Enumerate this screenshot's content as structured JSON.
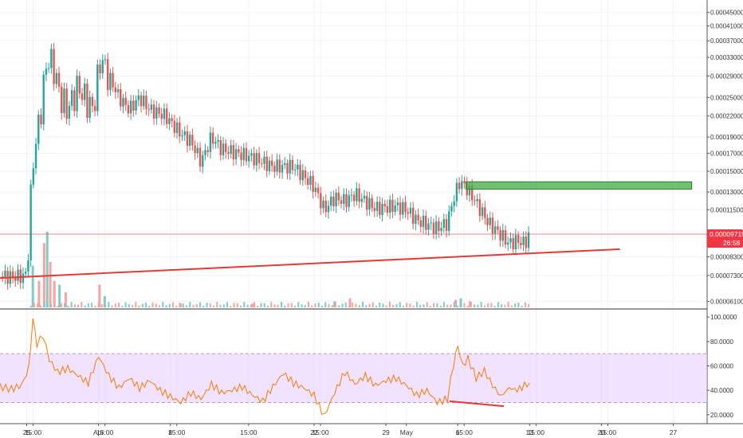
{
  "chart_data": [
    {
      "type": "candlestick",
      "price_axis": {
        "scale": "log",
        "ticks": [
          "0.00045000",
          "0.00041000",
          "0.00037000",
          "0.00033000",
          "0.00029000",
          "0.00025000",
          "0.00022000",
          "0.00019000",
          "0.00017000",
          "0.00015000",
          "0.00013000",
          "0.00011500",
          "0.00009500",
          "0.00008300",
          "0.00007300",
          "0.00006100"
        ],
        "tick_values": [
          0.00045,
          0.00041,
          0.00037,
          0.00033,
          0.00029,
          0.00025,
          0.00022,
          0.00019,
          0.00017,
          0.00015,
          0.00013,
          0.000115,
          9.5e-05,
          8.3e-05,
          7.3e-05,
          6.1e-05
        ],
        "ylim": [
          5.85e-05,
          0.00048
        ]
      },
      "current_price": {
        "label": "0.00009715",
        "value": 9.715e-05,
        "countdown": "26:58",
        "color": "#f23645"
      },
      "x_axis": {
        "tick_labels": [
          "25",
          "15:00",
          "Apr",
          "15:00",
          "8",
          "15:00",
          "15:00",
          "22",
          "15:00",
          "29",
          "May",
          "6",
          "15:00",
          "13",
          "15:00",
          "20",
          "15:00",
          "27"
        ],
        "tick_days": [
          25,
          25.625,
          32,
          32.625,
          39,
          39.625,
          46.625,
          53,
          53.625,
          60,
          62,
          67,
          67.625,
          74,
          74.625,
          81,
          81.625,
          88
        ],
        "xlim": [
          22.4,
          91.3
        ]
      },
      "price_path": [
        {
          "d": 22.4,
          "v": 7.25e-05
        },
        {
          "d": 24.6,
          "v": 7.25e-05
        },
        {
          "d": 25.0,
          "v": 7.4e-05
        },
        {
          "d": 25.6,
          "v": 0.00016
        },
        {
          "d": 26.3,
          "v": 0.00022
        },
        {
          "d": 27.0,
          "v": 0.00033
        },
        {
          "d": 27.6,
          "v": 0.00031
        },
        {
          "d": 28.3,
          "v": 0.00025
        },
        {
          "d": 29.0,
          "v": 0.00023
        },
        {
          "d": 30.0,
          "v": 0.00027
        },
        {
          "d": 31.0,
          "v": 0.00024
        },
        {
          "d": 31.5,
          "v": 0.00023
        },
        {
          "d": 32.2,
          "v": 0.00033
        },
        {
          "d": 33.0,
          "v": 0.00029
        },
        {
          "d": 34.0,
          "v": 0.00025
        },
        {
          "d": 35.0,
          "v": 0.00023
        },
        {
          "d": 36.0,
          "v": 0.00025
        },
        {
          "d": 37.0,
          "v": 0.00023
        },
        {
          "d": 38.5,
          "v": 0.00022
        },
        {
          "d": 40.0,
          "v": 0.000195
        },
        {
          "d": 41.0,
          "v": 0.000185
        },
        {
          "d": 42.0,
          "v": 0.00016
        },
        {
          "d": 43.0,
          "v": 0.00019
        },
        {
          "d": 44.0,
          "v": 0.000175
        },
        {
          "d": 45.5,
          "v": 0.00017
        },
        {
          "d": 47.0,
          "v": 0.000165
        },
        {
          "d": 49.0,
          "v": 0.000155
        },
        {
          "d": 51.0,
          "v": 0.000155
        },
        {
          "d": 52.0,
          "v": 0.000145
        },
        {
          "d": 53.0,
          "v": 0.000135
        },
        {
          "d": 54.0,
          "v": 0.000115
        },
        {
          "d": 55.0,
          "v": 0.000125
        },
        {
          "d": 56.0,
          "v": 0.000122
        },
        {
          "d": 57.0,
          "v": 0.000128
        },
        {
          "d": 58.0,
          "v": 0.000122
        },
        {
          "d": 59.0,
          "v": 0.000116
        },
        {
          "d": 61.0,
          "v": 0.000118
        },
        {
          "d": 62.0,
          "v": 0.000115
        },
        {
          "d": 63.0,
          "v": 0.000107
        },
        {
          "d": 65.0,
          "v": 0.000101
        },
        {
          "d": 66.0,
          "v": 0.000105
        },
        {
          "d": 66.5,
          "v": 0.000122
        },
        {
          "d": 67.2,
          "v": 0.00014
        },
        {
          "d": 68.0,
          "v": 0.000132
        },
        {
          "d": 69.0,
          "v": 0.000118
        },
        {
          "d": 70.0,
          "v": 0.000105
        },
        {
          "d": 71.0,
          "v": 9.8e-05
        },
        {
          "d": 72.0,
          "v": 9.1e-05
        },
        {
          "d": 72.8,
          "v": 9.3e-05
        },
        {
          "d": 73.5,
          "v": 9.1e-05
        },
        {
          "d": 74.0,
          "v": 9.715e-05
        }
      ],
      "volume": [
        {
          "d": 25.6,
          "v": 0.55
        },
        {
          "d": 26.2,
          "v": 0.35
        },
        {
          "d": 26.7,
          "v": 0.85
        },
        {
          "d": 27.0,
          "v": 1.0
        },
        {
          "d": 27.3,
          "v": 0.6
        },
        {
          "d": 27.7,
          "v": 0.35
        },
        {
          "d": 28.2,
          "v": 0.3
        },
        {
          "d": 28.8,
          "v": 0.2
        },
        {
          "d": 32.1,
          "v": 0.3
        },
        {
          "d": 32.6,
          "v": 0.15
        },
        {
          "d": 40.0,
          "v": 0.05
        },
        {
          "d": 47.0,
          "v": 0.05
        },
        {
          "d": 55.0,
          "v": 0.08
        },
        {
          "d": 56.5,
          "v": 0.12
        },
        {
          "d": 66.8,
          "v": 0.1
        },
        {
          "d": 67.3,
          "v": 0.12
        },
        {
          "d": 68.2,
          "v": 0.08
        }
      ],
      "support_line": {
        "start": {
          "d": 22.4,
          "v": 7.17e-05
        },
        "end": {
          "d": 82.8,
          "v": 8.75e-05
        },
        "color": "#e53935"
      },
      "resistance_zone": {
        "d_start": 67.8,
        "d_end": 89.8,
        "v_top": 0.0001395,
        "v_bottom": 0.0001325,
        "color": "#4caf50"
      },
      "colors": {
        "up": "#26a69a",
        "down": "#ef5350",
        "volume_up": "#80cbc4",
        "volume_down": "#f5a3a3"
      }
    },
    {
      "type": "line",
      "indicator": "RSI",
      "y_axis": {
        "ticks": [
          "100.0000",
          "80.0000",
          "60.0000",
          "40.0000",
          "20.0000"
        ],
        "tick_values": [
          100,
          80,
          60,
          40,
          20
        ],
        "ylim": [
          14,
          104
        ]
      },
      "bands": {
        "upper": 70,
        "lower": 30,
        "fill": "#e6ccff",
        "border": "#b0a0c0"
      },
      "line_color": "#f57c00",
      "values": [
        {
          "d": 22.4,
          "v": 43
        },
        {
          "d": 23.5,
          "v": 41
        },
        {
          "d": 24.5,
          "v": 44
        },
        {
          "d": 25.2,
          "v": 58
        },
        {
          "d": 25.6,
          "v": 98
        },
        {
          "d": 26.0,
          "v": 78
        },
        {
          "d": 26.6,
          "v": 85
        },
        {
          "d": 27.2,
          "v": 65
        },
        {
          "d": 28.0,
          "v": 55
        },
        {
          "d": 29.0,
          "v": 58
        },
        {
          "d": 30.0,
          "v": 52
        },
        {
          "d": 31.0,
          "v": 46
        },
        {
          "d": 32.0,
          "v": 68
        },
        {
          "d": 33.0,
          "v": 52
        },
        {
          "d": 34.0,
          "v": 42
        },
        {
          "d": 35.0,
          "v": 50
        },
        {
          "d": 36.0,
          "v": 42
        },
        {
          "d": 37.0,
          "v": 48
        },
        {
          "d": 38.0,
          "v": 40
        },
        {
          "d": 39.0,
          "v": 35
        },
        {
          "d": 40.0,
          "v": 30
        },
        {
          "d": 41.0,
          "v": 38
        },
        {
          "d": 42.0,
          "v": 33
        },
        {
          "d": 43.0,
          "v": 45
        },
        {
          "d": 44.0,
          "v": 38
        },
        {
          "d": 45.0,
          "v": 40
        },
        {
          "d": 46.0,
          "v": 43
        },
        {
          "d": 47.0,
          "v": 36
        },
        {
          "d": 48.0,
          "v": 31
        },
        {
          "d": 49.0,
          "v": 43
        },
        {
          "d": 50.0,
          "v": 54
        },
        {
          "d": 51.0,
          "v": 46
        },
        {
          "d": 52.0,
          "v": 42
        },
        {
          "d": 53.0,
          "v": 36
        },
        {
          "d": 53.5,
          "v": 27
        },
        {
          "d": 54.0,
          "v": 19
        },
        {
          "d": 55.0,
          "v": 38
        },
        {
          "d": 56.0,
          "v": 55
        },
        {
          "d": 57.0,
          "v": 45
        },
        {
          "d": 58.0,
          "v": 52
        },
        {
          "d": 59.0,
          "v": 44
        },
        {
          "d": 60.0,
          "v": 48
        },
        {
          "d": 61.0,
          "v": 50
        },
        {
          "d": 62.0,
          "v": 44
        },
        {
          "d": 63.0,
          "v": 36
        },
        {
          "d": 64.0,
          "v": 40
        },
        {
          "d": 65.0,
          "v": 30
        },
        {
          "d": 66.0,
          "v": 33
        },
        {
          "d": 66.6,
          "v": 62
        },
        {
          "d": 67.0,
          "v": 76
        },
        {
          "d": 67.5,
          "v": 60
        },
        {
          "d": 68.0,
          "v": 66
        },
        {
          "d": 68.8,
          "v": 50
        },
        {
          "d": 69.6,
          "v": 56
        },
        {
          "d": 70.4,
          "v": 44
        },
        {
          "d": 71.2,
          "v": 35
        },
        {
          "d": 72.0,
          "v": 42
        },
        {
          "d": 72.8,
          "v": 40
        },
        {
          "d": 73.5,
          "v": 44
        },
        {
          "d": 74.0,
          "v": 46
        }
      ],
      "divergence_line": {
        "start": {
          "d": 66.2,
          "v": 31
        },
        "end": {
          "d": 71.5,
          "v": 27
        },
        "color": "#e53935"
      }
    }
  ]
}
